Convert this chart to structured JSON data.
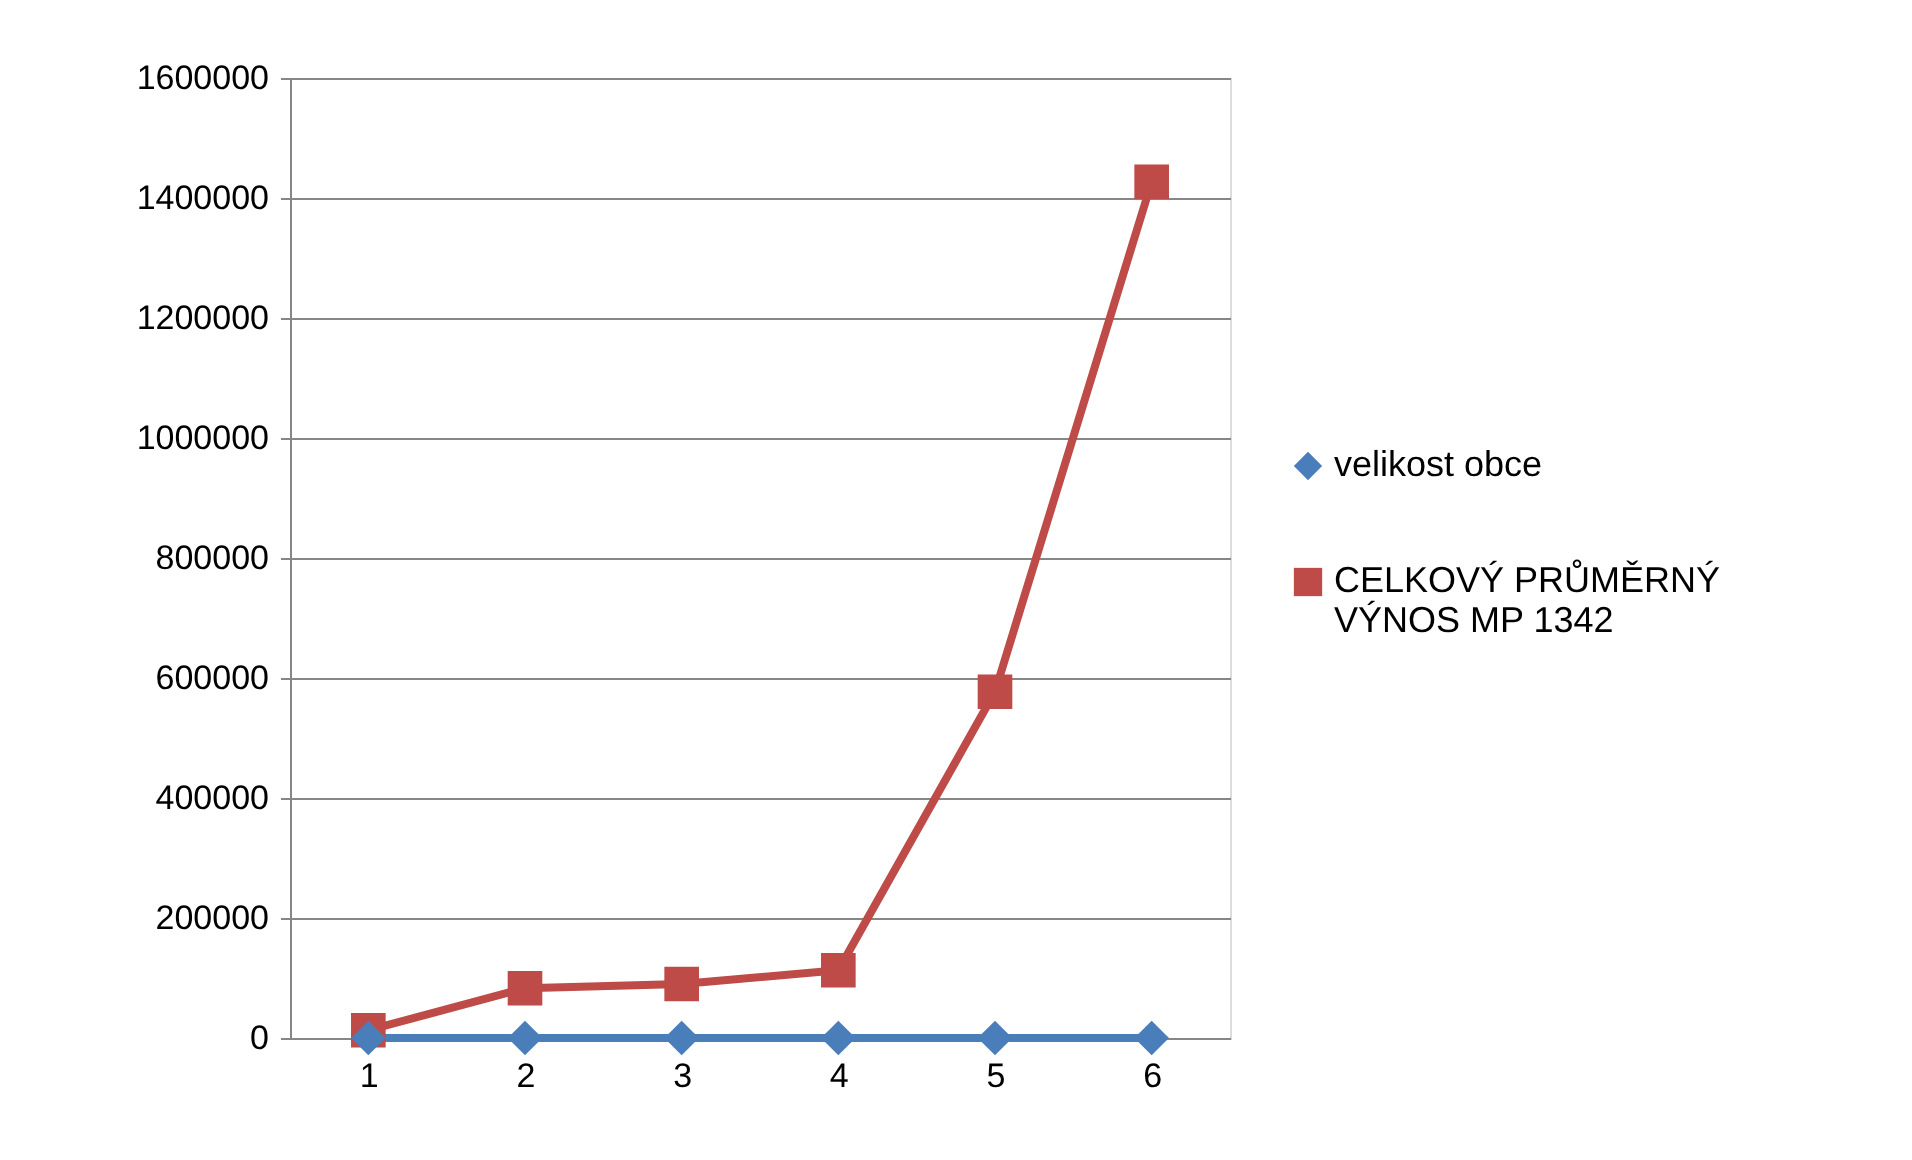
{
  "chart_data": {
    "type": "line",
    "categories": [
      "1",
      "2",
      "3",
      "4",
      "5",
      "6"
    ],
    "series": [
      {
        "name": "velikost obce",
        "color": "#4a7ebb",
        "marker": "diamond",
        "values": [
          0,
          0,
          0,
          0,
          0,
          0
        ]
      },
      {
        "name": "CELKOVÝ PRŮMĚRNÝ VÝNOS MP 1342",
        "color": "#be4b48",
        "marker": "square",
        "values": [
          13000,
          83000,
          90000,
          113000,
          577000,
          1427000
        ]
      }
    ],
    "ylim": [
      0,
      1600000
    ],
    "yticks": [
      0,
      200000,
      400000,
      600000,
      800000,
      1000000,
      1200000,
      1400000,
      1600000
    ],
    "grid": "y",
    "legend": "right"
  }
}
